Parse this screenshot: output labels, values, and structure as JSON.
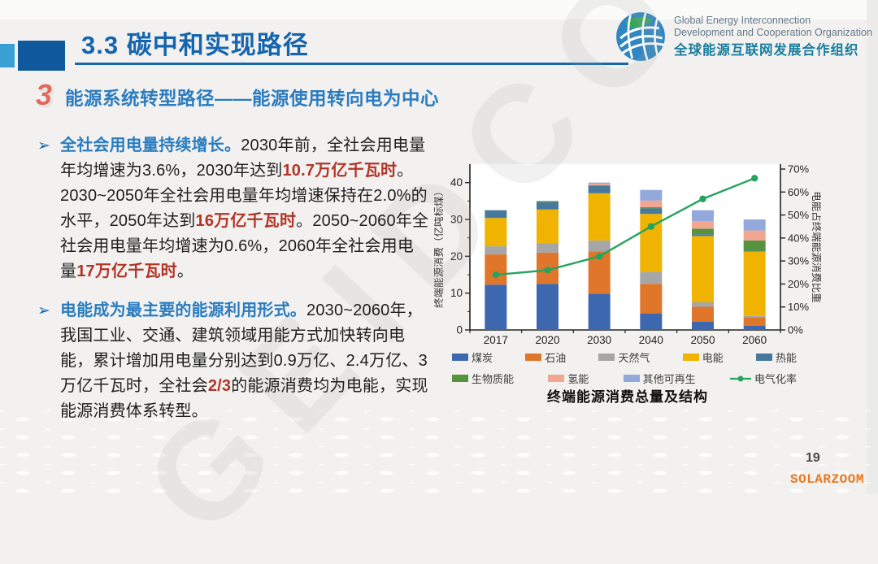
{
  "header": {
    "title": "3.3 碳中和实现路径",
    "logo": {
      "line1": "Global Energy Interconnection",
      "line2": "Development and Cooperation Organization",
      "line3": "全球能源互联网发展合作组织"
    }
  },
  "section": {
    "number": "3",
    "title": "能源系统转型路径——能源使用转向电为中心"
  },
  "bullets": [
    {
      "marker": "➢",
      "segments": [
        {
          "text": "全社会用电量持续增长。",
          "style": "blue"
        },
        {
          "text": "2030年前，全社会用电量年均增速为3.6%，2030年达到",
          "style": "normal"
        },
        {
          "text": "10.7万亿千瓦时",
          "style": "red"
        },
        {
          "text": "。2030~2050年全社会用电量年均增速保持在2.0%的水平，2050年达到",
          "style": "normal"
        },
        {
          "text": "16万亿千瓦时",
          "style": "red"
        },
        {
          "text": "。2050~2060年全社会用电量年均增速为0.6%，2060年全社会用电量",
          "style": "normal"
        },
        {
          "text": "17万亿千瓦时",
          "style": "red"
        },
        {
          "text": "。",
          "style": "normal"
        }
      ]
    },
    {
      "marker": "➢",
      "segments": [
        {
          "text": "电能成为最主要的能源利用形式。",
          "style": "blue"
        },
        {
          "text": "2030~2060年，我国工业、交通、建筑领域用能方式加快转向电能，累计增加用电量分别达到0.9万亿、2.4万亿、3万亿千瓦时，全社会",
          "style": "normal"
        },
        {
          "text": "2/3",
          "style": "red"
        },
        {
          "text": "的能源消费均为电能，实现能源消费体系转型。",
          "style": "normal"
        }
      ]
    }
  ],
  "chart_data": {
    "type": "bar",
    "subtype": "stacked-bar-with-line",
    "title": "终端能源消费总量及结构",
    "categories": [
      "2017",
      "2020",
      "2030",
      "2040",
      "2050",
      "2060"
    ],
    "series": [
      {
        "name": "煤炭",
        "color": "#3d68b0",
        "values": [
          12.3,
          12.5,
          9.8,
          4.5,
          2.2,
          1.1
        ]
      },
      {
        "name": "石油",
        "color": "#e0762a",
        "values": [
          8.2,
          8.5,
          11.5,
          8.0,
          4.1,
          2.3
        ]
      },
      {
        "name": "天然气",
        "color": "#a6a6a6",
        "values": [
          2.2,
          2.5,
          3.0,
          3.3,
          1.2,
          0.4
        ]
      },
      {
        "name": "电能",
        "color": "#f0b400",
        "values": [
          7.7,
          9.2,
          12.8,
          15.7,
          18.0,
          17.5
        ]
      },
      {
        "name": "热能",
        "color": "#47799c",
        "values": [
          2.1,
          2.0,
          2.0,
          1.5,
          0.5,
          0.2
        ]
      },
      {
        "name": "生物质能",
        "color": "#55943c",
        "values": [
          0,
          0.3,
          0.2,
          0.3,
          1.5,
          2.8
        ]
      },
      {
        "name": "氢能",
        "color": "#f2a58f",
        "values": [
          0,
          0,
          0.4,
          1.8,
          2.0,
          2.7
        ]
      },
      {
        "name": "其他可再生",
        "color": "#93a9dc",
        "values": [
          0,
          0,
          0.3,
          2.9,
          3.0,
          3.0
        ]
      }
    ],
    "line_series": {
      "name": "电气化率",
      "color": "#27a35e",
      "values_pct": [
        24,
        26,
        32,
        45,
        57,
        66
      ]
    },
    "left_axis": {
      "label": "终端能源消费（亿吨标煤）",
      "ticks": [
        0,
        10,
        20,
        30,
        40
      ],
      "max": 45
    },
    "right_axis": {
      "label": "电能占终端能源消费比重",
      "ticks": [
        "0%",
        "10%",
        "20%",
        "30%",
        "40%",
        "50%",
        "60%",
        "70%"
      ],
      "max": 70
    },
    "legend_position": "bottom",
    "grid": false
  },
  "footer": {
    "page_number": "19",
    "watermark": "SOLARZOOM",
    "slide_watermark": "GEIDCO"
  },
  "colors": {
    "title_blue": "#1565ae",
    "heading_blue": "#2a7cc0",
    "emphasis_red": "#b23428",
    "badge_red": "#e06a5e",
    "logo_teal": "#1a7f9f",
    "watermark_orange": "#e87820"
  }
}
